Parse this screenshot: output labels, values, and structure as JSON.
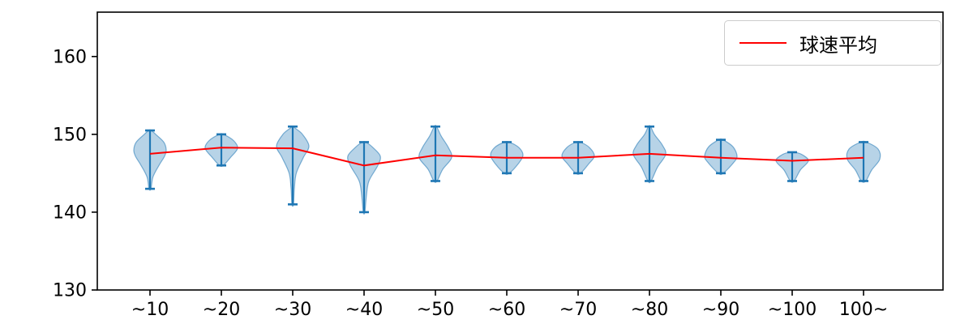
{
  "figure": {
    "background": "#ffffff"
  },
  "chart_data": {
    "type": "violin",
    "title": "",
    "xlabel": "",
    "ylabel": "",
    "ylim": [
      130,
      165.7
    ],
    "y_ticks": [
      130,
      140,
      150,
      160
    ],
    "grid": false,
    "categories": [
      "~10",
      "~20",
      "~30",
      "~40",
      "~50",
      "~60",
      "~70",
      "~80",
      "~90",
      "~100",
      "100~"
    ],
    "violins": [
      {
        "label": "~10",
        "min": 143,
        "max": 150.5,
        "mean": 147.5,
        "shape": [
          [
            143,
            0.06
          ],
          [
            144.5,
            0.18
          ],
          [
            146,
            0.55
          ],
          [
            147.2,
            0.9
          ],
          [
            148,
            1.0
          ],
          [
            149,
            0.85
          ],
          [
            150,
            0.35
          ],
          [
            150.5,
            0.08
          ]
        ]
      },
      {
        "label": "~20",
        "min": 146,
        "max": 150,
        "mean": 148.3,
        "shape": [
          [
            146,
            0.12
          ],
          [
            147,
            0.55
          ],
          [
            148.2,
            1.0
          ],
          [
            149.2,
            0.75
          ],
          [
            150,
            0.12
          ]
        ]
      },
      {
        "label": "~30",
        "min": 141,
        "max": 151,
        "mean": 148.2,
        "shape": [
          [
            141,
            0.05
          ],
          [
            143,
            0.1
          ],
          [
            145,
            0.22
          ],
          [
            147,
            0.65
          ],
          [
            148.5,
            1.0
          ],
          [
            150,
            0.6
          ],
          [
            150.8,
            0.15
          ],
          [
            151,
            0.06
          ]
        ]
      },
      {
        "label": "~40",
        "min": 140,
        "max": 149,
        "mean": 146.0,
        "shape": [
          [
            140,
            0.05
          ],
          [
            142,
            0.14
          ],
          [
            144,
            0.3
          ],
          [
            146,
            0.85
          ],
          [
            147.2,
            1.0
          ],
          [
            148.3,
            0.55
          ],
          [
            149,
            0.1
          ]
        ]
      },
      {
        "label": "~50",
        "min": 144,
        "max": 151,
        "mean": 147.3,
        "shape": [
          [
            144,
            0.1
          ],
          [
            145.5,
            0.45
          ],
          [
            147,
            1.0
          ],
          [
            148.3,
            0.8
          ],
          [
            149.8,
            0.35
          ],
          [
            151,
            0.07
          ]
        ]
      },
      {
        "label": "~60",
        "min": 145,
        "max": 149,
        "mean": 147.0,
        "shape": [
          [
            145,
            0.15
          ],
          [
            146.2,
            0.7
          ],
          [
            147.3,
            1.0
          ],
          [
            148.3,
            0.75
          ],
          [
            149,
            0.15
          ]
        ]
      },
      {
        "label": "~70",
        "min": 145,
        "max": 149,
        "mean": 147.0,
        "shape": [
          [
            145,
            0.15
          ],
          [
            146.2,
            0.65
          ],
          [
            147.2,
            1.0
          ],
          [
            148.3,
            0.7
          ],
          [
            149,
            0.14
          ]
        ]
      },
      {
        "label": "~80",
        "min": 144,
        "max": 151,
        "mean": 147.5,
        "shape": [
          [
            144,
            0.1
          ],
          [
            145.8,
            0.5
          ],
          [
            147.4,
            1.0
          ],
          [
            148.6,
            0.8
          ],
          [
            150,
            0.3
          ],
          [
            151,
            0.07
          ]
        ]
      },
      {
        "label": "~90",
        "min": 145,
        "max": 149.3,
        "mean": 147.0,
        "shape": [
          [
            145,
            0.15
          ],
          [
            146.4,
            0.8
          ],
          [
            147.2,
            1.0
          ],
          [
            148.4,
            0.75
          ],
          [
            149.3,
            0.13
          ]
        ]
      },
      {
        "label": "~100",
        "min": 144,
        "max": 147.7,
        "mean": 146.6,
        "shape": [
          [
            144,
            0.12
          ],
          [
            145.4,
            0.5
          ],
          [
            146.6,
            1.0
          ],
          [
            147.4,
            0.6
          ],
          [
            147.7,
            0.15
          ]
        ]
      },
      {
        "label": "100~",
        "min": 144,
        "max": 149,
        "mean": 147.0,
        "shape": [
          [
            144,
            0.14
          ],
          [
            145.4,
            0.5
          ],
          [
            146.8,
            1.0
          ],
          [
            148.1,
            0.9
          ],
          [
            149,
            0.18
          ]
        ]
      }
    ],
    "mean_line": {
      "label": "球速平均",
      "values": [
        147.5,
        148.3,
        148.2,
        146.0,
        147.3,
        147.0,
        147.0,
        147.5,
        147.0,
        146.6,
        147.0
      ]
    },
    "legend": {
      "label": "球速平均",
      "position": "upper right"
    },
    "colors": {
      "violin_fill": "#1f77b4",
      "violin_fill_opacity": "0.32",
      "violin_edge": "#1f77b4",
      "extrema": "#1f77b4",
      "mean_line": "#ff0000",
      "axis": "#000000",
      "legend_border": "#cccccc"
    }
  }
}
